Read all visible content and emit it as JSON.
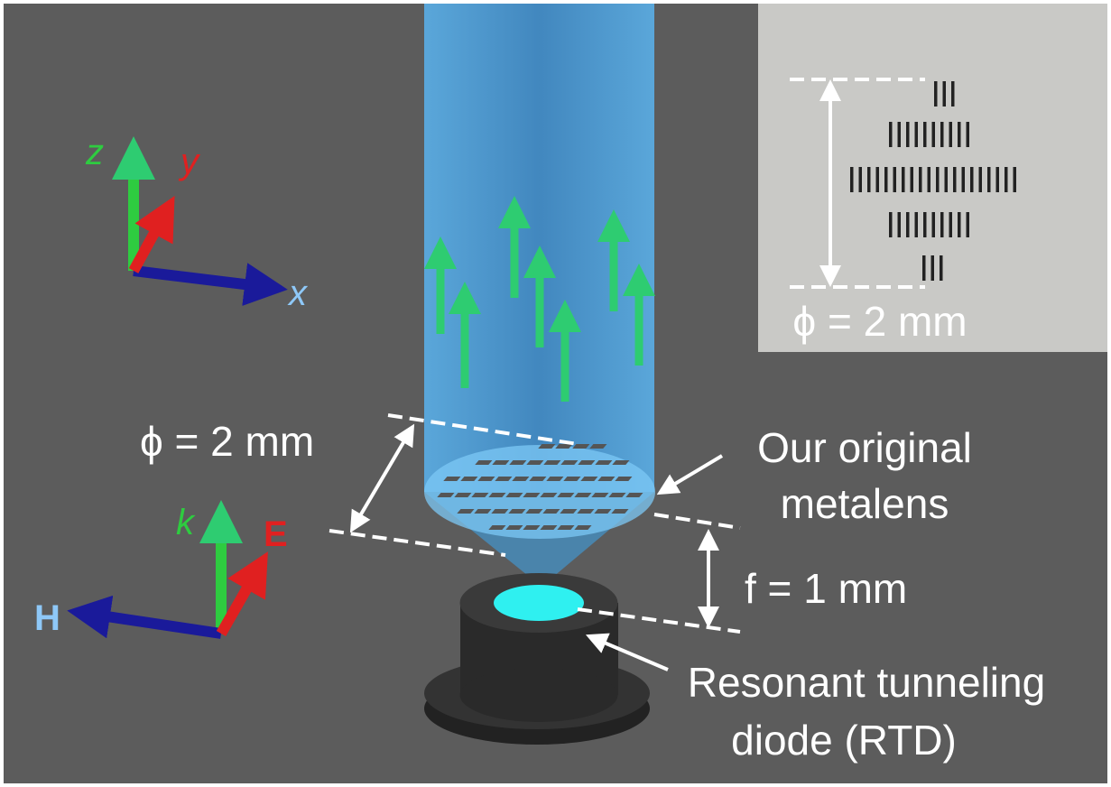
{
  "axes_top": {
    "z": "z",
    "y": "y",
    "x": "x"
  },
  "axes_bottom": {
    "k": "k",
    "E": "E",
    "H": "H"
  },
  "labels": {
    "diameter": "ϕ = 2 mm",
    "metalens": {
      "lines": [
        "Our original",
        "metalens"
      ]
    },
    "focal": "f = 1 mm",
    "rtd": {
      "lines": [
        "Resonant tunneling",
        "diode (RTD)"
      ]
    }
  },
  "inset": {
    "diameter": "ϕ = 2 mm"
  }
}
